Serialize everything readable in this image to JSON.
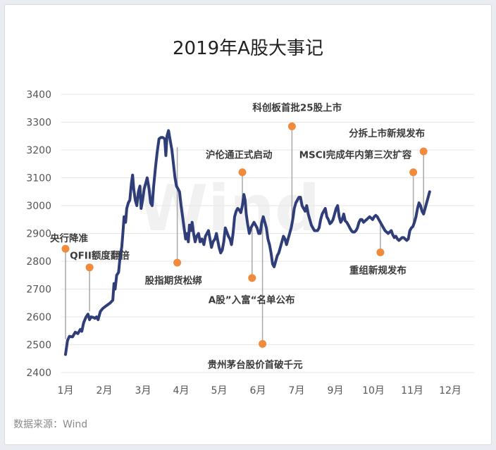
{
  "chart_data": {
    "type": "line",
    "title": "2019年A股大事记",
    "source": "数据来源：Wind",
    "watermark": "Wind",
    "ylim": [
      2400,
      3400
    ],
    "yticks": [
      2400,
      2500,
      2600,
      2700,
      2800,
      2900,
      3000,
      3100,
      3200,
      3300,
      3400
    ],
    "grid": true,
    "x_categories": [
      "1月",
      "2月",
      "3月",
      "4月",
      "5月",
      "6月",
      "7月",
      "9月",
      "10月",
      "11月",
      "12月"
    ],
    "series": [
      {
        "color": "#2f3d78",
        "points": [
          [
            0.0,
            2465
          ],
          [
            0.05,
            2515
          ],
          [
            0.1,
            2530
          ],
          [
            0.18,
            2528
          ],
          [
            0.25,
            2545
          ],
          [
            0.32,
            2540
          ],
          [
            0.38,
            2555
          ],
          [
            0.42,
            2548
          ],
          [
            0.47,
            2580
          ],
          [
            0.53,
            2600
          ],
          [
            0.58,
            2610
          ],
          [
            0.62,
            2590
          ],
          [
            0.66,
            2600
          ],
          [
            0.72,
            2598
          ],
          [
            0.76,
            2595
          ],
          [
            0.8,
            2600
          ],
          [
            0.84,
            2590
          ],
          [
            0.9,
            2620
          ],
          [
            0.96,
            2630
          ],
          [
            1.05,
            2640
          ],
          [
            1.15,
            2650
          ],
          [
            1.22,
            2660
          ],
          [
            1.25,
            2720
          ],
          [
            1.28,
            2700
          ],
          [
            1.32,
            2750
          ],
          [
            1.37,
            2760
          ],
          [
            1.41,
            2820
          ],
          [
            1.45,
            2850
          ],
          [
            1.48,
            2900
          ],
          [
            1.51,
            2960
          ],
          [
            1.55,
            2940
          ],
          [
            1.58,
            2990
          ],
          [
            1.62,
            3010
          ],
          [
            1.66,
            3020
          ],
          [
            1.7,
            3080
          ],
          [
            1.73,
            3110
          ],
          [
            1.76,
            3060
          ],
          [
            1.8,
            3020
          ],
          [
            1.84,
            3000
          ],
          [
            1.88,
            3050
          ],
          [
            1.92,
            3070
          ],
          [
            1.95,
            2990
          ],
          [
            1.99,
            3020
          ],
          [
            2.03,
            3060
          ],
          [
            2.07,
            3080
          ],
          [
            2.11,
            3100
          ],
          [
            2.16,
            3060
          ],
          [
            2.2,
            3010
          ],
          [
            2.24,
            3000
          ],
          [
            2.28,
            3070
          ],
          [
            2.33,
            3140
          ],
          [
            2.37,
            3190
          ],
          [
            2.42,
            3240
          ],
          [
            2.47,
            3245
          ],
          [
            2.52,
            3245
          ],
          [
            2.57,
            3240
          ],
          [
            2.6,
            3180
          ],
          [
            2.63,
            3250
          ],
          [
            2.67,
            3270
          ],
          [
            2.72,
            3230
          ],
          [
            2.76,
            3200
          ],
          [
            2.8,
            3150
          ],
          [
            2.84,
            3100
          ],
          [
            2.88,
            3070
          ],
          [
            2.92,
            3060
          ],
          [
            2.96,
            3050
          ],
          [
            3.0,
            3000
          ],
          [
            3.04,
            2960
          ],
          [
            3.08,
            2920
          ],
          [
            3.12,
            2880
          ],
          [
            3.16,
            2900
          ],
          [
            3.19,
            2870
          ],
          [
            3.22,
            2930
          ],
          [
            3.26,
            2910
          ],
          [
            3.29,
            2940
          ],
          [
            3.33,
            2900
          ],
          [
            3.37,
            2870
          ],
          [
            3.41,
            2890
          ],
          [
            3.46,
            2900
          ],
          [
            3.5,
            2870
          ],
          [
            3.55,
            2880
          ],
          [
            3.6,
            2860
          ],
          [
            3.64,
            2890
          ],
          [
            3.68,
            2900
          ],
          [
            3.72,
            2910
          ],
          [
            3.76,
            2880
          ],
          [
            3.8,
            2850
          ],
          [
            3.84,
            2870
          ],
          [
            3.89,
            2880
          ],
          [
            3.93,
            2900
          ],
          [
            3.97,
            2870
          ],
          [
            4.0,
            2850
          ],
          [
            4.04,
            2830
          ],
          [
            4.08,
            2840
          ],
          [
            4.12,
            2870
          ],
          [
            4.16,
            2920
          ],
          [
            4.2,
            2905
          ],
          [
            4.24,
            2890
          ],
          [
            4.28,
            2880
          ],
          [
            4.32,
            2860
          ],
          [
            4.36,
            2900
          ],
          [
            4.4,
            2960
          ],
          [
            4.44,
            2980
          ],
          [
            4.48,
            2990
          ],
          [
            4.52,
            2985
          ],
          [
            4.56,
            2975
          ],
          [
            4.6,
            3000
          ],
          [
            4.64,
            3040
          ],
          [
            4.67,
            3020
          ],
          [
            4.7,
            2970
          ],
          [
            4.74,
            2930
          ],
          [
            4.78,
            2900
          ],
          [
            4.82,
            2920
          ],
          [
            4.86,
            2930
          ],
          [
            4.9,
            2940
          ],
          [
            4.94,
            2930
          ],
          [
            4.98,
            2920
          ],
          [
            5.02,
            2900
          ],
          [
            5.06,
            2900
          ],
          [
            5.1,
            2940
          ],
          [
            5.14,
            2960
          ],
          [
            5.18,
            2940
          ],
          [
            5.22,
            2920
          ],
          [
            5.26,
            2880
          ],
          [
            5.3,
            2860
          ],
          [
            5.34,
            2830
          ],
          [
            5.38,
            2790
          ],
          [
            5.42,
            2780
          ],
          [
            5.46,
            2800
          ],
          [
            5.5,
            2820
          ],
          [
            5.54,
            2830
          ],
          [
            5.58,
            2850
          ],
          [
            5.62,
            2870
          ],
          [
            5.66,
            2890
          ],
          [
            5.7,
            2880
          ],
          [
            5.74,
            2860
          ],
          [
            5.78,
            2880
          ],
          [
            5.82,
            2900
          ],
          [
            5.86,
            2920
          ],
          [
            5.9,
            2950
          ],
          [
            5.94,
            2990
          ],
          [
            5.98,
            3010
          ],
          [
            6.02,
            3020
          ],
          [
            6.06,
            3030
          ],
          [
            6.1,
            3030
          ],
          [
            6.14,
            3000
          ],
          [
            6.18,
            2990
          ],
          [
            6.22,
            2980
          ],
          [
            6.26,
            3000
          ],
          [
            6.3,
            2970
          ],
          [
            6.34,
            2950
          ],
          [
            6.38,
            2930
          ],
          [
            6.42,
            2920
          ],
          [
            6.46,
            2910
          ],
          [
            6.5,
            2910
          ],
          [
            6.54,
            2910
          ],
          [
            6.58,
            2920
          ],
          [
            6.62,
            2950
          ],
          [
            6.66,
            2970
          ],
          [
            6.7,
            2980
          ],
          [
            6.74,
            2990
          ],
          [
            6.78,
            2960
          ],
          [
            6.82,
            2950
          ],
          [
            6.86,
            2935
          ],
          [
            6.9,
            2940
          ],
          [
            6.94,
            2950
          ],
          [
            6.98,
            2970
          ],
          [
            7.02,
            2990
          ],
          [
            7.06,
            3000
          ],
          [
            7.1,
            2960
          ],
          [
            7.14,
            2940
          ],
          [
            7.18,
            2950
          ],
          [
            7.22,
            2970
          ],
          [
            7.26,
            2945
          ],
          [
            7.3,
            2940
          ],
          [
            7.34,
            2930
          ],
          [
            7.38,
            2920
          ],
          [
            7.42,
            2910
          ],
          [
            7.46,
            2905
          ],
          [
            7.5,
            2905
          ],
          [
            7.54,
            2910
          ],
          [
            7.58,
            2920
          ],
          [
            7.62,
            2940
          ],
          [
            7.66,
            2950
          ],
          [
            7.7,
            2950
          ],
          [
            7.74,
            2940
          ],
          [
            7.78,
            2945
          ],
          [
            7.82,
            2950
          ],
          [
            7.86,
            2955
          ],
          [
            7.9,
            2960
          ],
          [
            7.94,
            2955
          ],
          [
            7.98,
            2950
          ],
          [
            8.02,
            2960
          ],
          [
            8.06,
            2965
          ],
          [
            8.1,
            2960
          ],
          [
            8.14,
            2950
          ],
          [
            8.18,
            2940
          ],
          [
            8.22,
            2930
          ],
          [
            8.26,
            2920
          ],
          [
            8.3,
            2910
          ],
          [
            8.34,
            2905
          ],
          [
            8.38,
            2900
          ],
          [
            8.42,
            2905
          ],
          [
            8.46,
            2910
          ],
          [
            8.5,
            2895
          ],
          [
            8.54,
            2885
          ],
          [
            8.58,
            2890
          ],
          [
            8.62,
            2880
          ],
          [
            8.66,
            2875
          ],
          [
            8.7,
            2880
          ],
          [
            8.74,
            2885
          ],
          [
            8.78,
            2885
          ],
          [
            8.82,
            2880
          ],
          [
            8.86,
            2875
          ],
          [
            8.9,
            2880
          ],
          [
            8.94,
            2910
          ],
          [
            8.98,
            2920
          ],
          [
            9.02,
            2925
          ],
          [
            9.06,
            2940
          ],
          [
            9.1,
            2960
          ],
          [
            9.14,
            2990
          ],
          [
            9.18,
            3010
          ],
          [
            9.22,
            3000
          ],
          [
            9.26,
            2980
          ],
          [
            9.3,
            2970
          ],
          [
            9.34,
            2990
          ],
          [
            9.38,
            3010
          ],
          [
            9.42,
            3030
          ],
          [
            9.46,
            3050
          ]
        ]
      }
    ],
    "events": [
      {
        "label": "央行降准",
        "x": 0.0,
        "y_point": 2520,
        "y_dot": 2845
      },
      {
        "label": "QFII额度翻倍",
        "x": 0.62,
        "y_point": 2620,
        "y_dot": 2778
      },
      {
        "label": "股指期货松绑",
        "x": 2.9,
        "y_point": 3210,
        "y_dot": 2795
      },
      {
        "label": "沪伦通正式启动",
        "x": 4.6,
        "y_point": 2990,
        "y_dot": 3120
      },
      {
        "label": "A股”入富“名单公布",
        "x": 4.85,
        "y_point": 2920,
        "y_dot": 2740
      },
      {
        "label": "贵州茅台股价首破千元",
        "x": 5.12,
        "y_point": 2965,
        "y_dot": 2503
      },
      {
        "label": "科创板首批25股上市",
        "x": 5.88,
        "y_point": 2950,
        "y_dot": 3285
      },
      {
        "label": "重组新规发布",
        "x": 8.18,
        "y_point": 2935,
        "y_dot": 2832
      },
      {
        "label": "MSCI完成年内第三次扩容",
        "x": 9.03,
        "y_point": 2925,
        "y_dot": 3120
      },
      {
        "label": "分拆上市新规发布",
        "x": 9.3,
        "y_point": 2970,
        "y_dot": 3195
      }
    ]
  },
  "colors": {
    "line": "#2f3d78",
    "dot": "#f08a3c",
    "leader": "#a9a9a9",
    "grid": "#e6e6e6"
  }
}
